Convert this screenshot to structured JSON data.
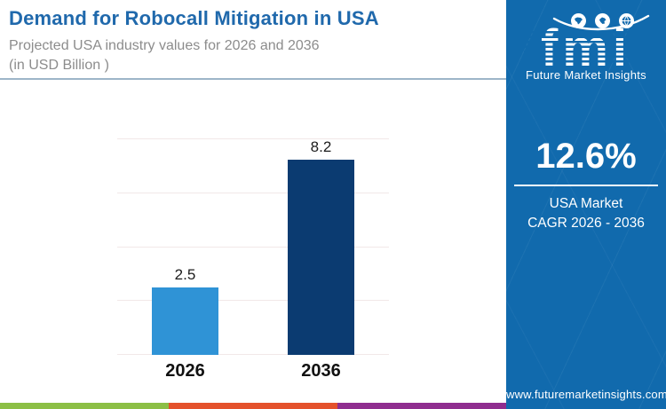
{
  "header": {
    "title": "Demand for Robocall Mitigation in USA",
    "subtitle_line1": "Projected USA industry values for 2026 and 2036",
    "subtitle_line2": "(in USD Billion )"
  },
  "chart_data": {
    "type": "bar",
    "title": "Demand for Robocall Mitigation in USA",
    "subtitle": "Projected USA industry values for 2026 and 2036 (in USD Billion)",
    "categories": [
      "2026",
      "2036"
    ],
    "values": [
      2.5,
      8.2
    ],
    "value_labels": [
      "2.5",
      "8.2"
    ],
    "bar_colors": [
      "#2f93d6",
      "#0b3b71"
    ],
    "unit": "USD Billion",
    "xlabel": "",
    "ylabel": "",
    "ylim": [
      0,
      8
    ],
    "gridline_values": [
      0,
      2,
      4,
      6,
      8
    ],
    "grid": "horizontal-only",
    "legend_position": "none"
  },
  "sidebar": {
    "background": "#116aad",
    "logo": {
      "text": "fmi",
      "tagline": "Future Market Insights",
      "icons": [
        "north-america-map-icon",
        "europe-map-icon",
        "globe-icon"
      ]
    },
    "stat": {
      "value": "12.6%",
      "label_line1": "USA Market",
      "label_line2": "CAGR 2026 - 2036"
    },
    "website": "www.futuremarketinsights.com"
  },
  "footer_stripe_colors": [
    "#8cbf45",
    "#e4512b",
    "#8f2d8f"
  ],
  "colors": {
    "title": "#2069ac",
    "subtitle": "#8c8c8c",
    "header_rule": "#9db5c8",
    "gridline": "#f1e8e8",
    "value_label": "#1c1c1c",
    "axis_label": "#111111"
  }
}
